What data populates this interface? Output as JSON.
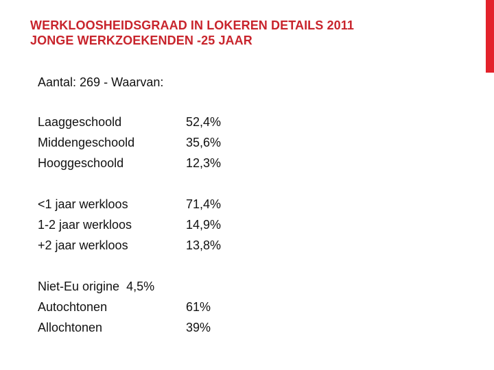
{
  "slide": {
    "title_line1": "WERKLOOSHEIDSGRAAD IN LOKEREN DETAILS 2011",
    "title_line2": "JONGE WERKZOEKENDEN -25 JAAR",
    "accent_color": "#e3222b",
    "title_color": "#c8242c",
    "intro": "Aantal: 269 - Waarvan:"
  },
  "education": [
    {
      "label": "Laaggeschoold",
      "value": "52,4%"
    },
    {
      "label": "Middengeschoold",
      "value": "35,6%"
    },
    {
      "label": "Hooggeschoold",
      "value": "12,3%"
    }
  ],
  "duration": [
    {
      "label": "<1 jaar werkloos",
      "value": "71,4%"
    },
    {
      "label": "1-2 jaar werkloos",
      "value": "14,9%"
    },
    {
      "label": "+2 jaar werkloos",
      "value": "13,8%"
    }
  ],
  "origin": {
    "non_eu_label": "Niet-Eu origine",
    "non_eu_value": "4,5%",
    "items": [
      {
        "label": "Autochtonen",
        "value": "61%"
      },
      {
        "label": "Allochtonen",
        "value": "39%"
      }
    ]
  }
}
